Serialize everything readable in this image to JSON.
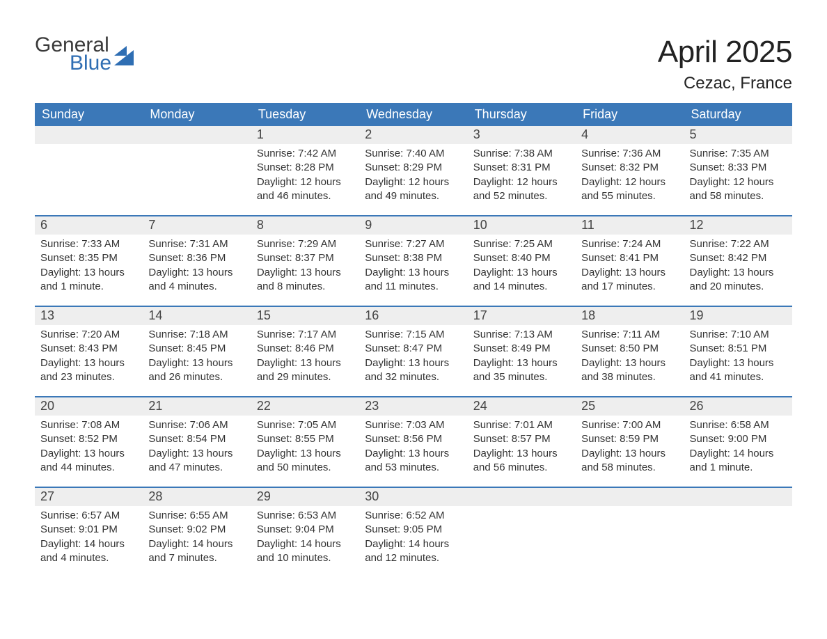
{
  "logo": {
    "general": "General",
    "blue": "Blue"
  },
  "title": "April 2025",
  "subtitle": "Cezac, France",
  "colors": {
    "header_bg": "#3b78b8",
    "header_text": "#ffffff",
    "daynum_bg": "#eeeeee",
    "body_text": "#333333",
    "row_border": "#3b78b8",
    "logo_blue": "#2f6eb3"
  },
  "fontsizes": {
    "title": 44,
    "subtitle": 24,
    "header": 18,
    "daynum": 18,
    "body": 15
  },
  "weekdays": [
    "Sunday",
    "Monday",
    "Tuesday",
    "Wednesday",
    "Thursday",
    "Friday",
    "Saturday"
  ],
  "weeks": [
    [
      {
        "day": "",
        "sunrise": "",
        "sunset": "",
        "daylight": ""
      },
      {
        "day": "",
        "sunrise": "",
        "sunset": "",
        "daylight": ""
      },
      {
        "day": "1",
        "sunrise": "Sunrise: 7:42 AM",
        "sunset": "Sunset: 8:28 PM",
        "daylight": "Daylight: 12 hours and 46 minutes."
      },
      {
        "day": "2",
        "sunrise": "Sunrise: 7:40 AM",
        "sunset": "Sunset: 8:29 PM",
        "daylight": "Daylight: 12 hours and 49 minutes."
      },
      {
        "day": "3",
        "sunrise": "Sunrise: 7:38 AM",
        "sunset": "Sunset: 8:31 PM",
        "daylight": "Daylight: 12 hours and 52 minutes."
      },
      {
        "day": "4",
        "sunrise": "Sunrise: 7:36 AM",
        "sunset": "Sunset: 8:32 PM",
        "daylight": "Daylight: 12 hours and 55 minutes."
      },
      {
        "day": "5",
        "sunrise": "Sunrise: 7:35 AM",
        "sunset": "Sunset: 8:33 PM",
        "daylight": "Daylight: 12 hours and 58 minutes."
      }
    ],
    [
      {
        "day": "6",
        "sunrise": "Sunrise: 7:33 AM",
        "sunset": "Sunset: 8:35 PM",
        "daylight": "Daylight: 13 hours and 1 minute."
      },
      {
        "day": "7",
        "sunrise": "Sunrise: 7:31 AM",
        "sunset": "Sunset: 8:36 PM",
        "daylight": "Daylight: 13 hours and 4 minutes."
      },
      {
        "day": "8",
        "sunrise": "Sunrise: 7:29 AM",
        "sunset": "Sunset: 8:37 PM",
        "daylight": "Daylight: 13 hours and 8 minutes."
      },
      {
        "day": "9",
        "sunrise": "Sunrise: 7:27 AM",
        "sunset": "Sunset: 8:38 PM",
        "daylight": "Daylight: 13 hours and 11 minutes."
      },
      {
        "day": "10",
        "sunrise": "Sunrise: 7:25 AM",
        "sunset": "Sunset: 8:40 PM",
        "daylight": "Daylight: 13 hours and 14 minutes."
      },
      {
        "day": "11",
        "sunrise": "Sunrise: 7:24 AM",
        "sunset": "Sunset: 8:41 PM",
        "daylight": "Daylight: 13 hours and 17 minutes."
      },
      {
        "day": "12",
        "sunrise": "Sunrise: 7:22 AM",
        "sunset": "Sunset: 8:42 PM",
        "daylight": "Daylight: 13 hours and 20 minutes."
      }
    ],
    [
      {
        "day": "13",
        "sunrise": "Sunrise: 7:20 AM",
        "sunset": "Sunset: 8:43 PM",
        "daylight": "Daylight: 13 hours and 23 minutes."
      },
      {
        "day": "14",
        "sunrise": "Sunrise: 7:18 AM",
        "sunset": "Sunset: 8:45 PM",
        "daylight": "Daylight: 13 hours and 26 minutes."
      },
      {
        "day": "15",
        "sunrise": "Sunrise: 7:17 AM",
        "sunset": "Sunset: 8:46 PM",
        "daylight": "Daylight: 13 hours and 29 minutes."
      },
      {
        "day": "16",
        "sunrise": "Sunrise: 7:15 AM",
        "sunset": "Sunset: 8:47 PM",
        "daylight": "Daylight: 13 hours and 32 minutes."
      },
      {
        "day": "17",
        "sunrise": "Sunrise: 7:13 AM",
        "sunset": "Sunset: 8:49 PM",
        "daylight": "Daylight: 13 hours and 35 minutes."
      },
      {
        "day": "18",
        "sunrise": "Sunrise: 7:11 AM",
        "sunset": "Sunset: 8:50 PM",
        "daylight": "Daylight: 13 hours and 38 minutes."
      },
      {
        "day": "19",
        "sunrise": "Sunrise: 7:10 AM",
        "sunset": "Sunset: 8:51 PM",
        "daylight": "Daylight: 13 hours and 41 minutes."
      }
    ],
    [
      {
        "day": "20",
        "sunrise": "Sunrise: 7:08 AM",
        "sunset": "Sunset: 8:52 PM",
        "daylight": "Daylight: 13 hours and 44 minutes."
      },
      {
        "day": "21",
        "sunrise": "Sunrise: 7:06 AM",
        "sunset": "Sunset: 8:54 PM",
        "daylight": "Daylight: 13 hours and 47 minutes."
      },
      {
        "day": "22",
        "sunrise": "Sunrise: 7:05 AM",
        "sunset": "Sunset: 8:55 PM",
        "daylight": "Daylight: 13 hours and 50 minutes."
      },
      {
        "day": "23",
        "sunrise": "Sunrise: 7:03 AM",
        "sunset": "Sunset: 8:56 PM",
        "daylight": "Daylight: 13 hours and 53 minutes."
      },
      {
        "day": "24",
        "sunrise": "Sunrise: 7:01 AM",
        "sunset": "Sunset: 8:57 PM",
        "daylight": "Daylight: 13 hours and 56 minutes."
      },
      {
        "day": "25",
        "sunrise": "Sunrise: 7:00 AM",
        "sunset": "Sunset: 8:59 PM",
        "daylight": "Daylight: 13 hours and 58 minutes."
      },
      {
        "day": "26",
        "sunrise": "Sunrise: 6:58 AM",
        "sunset": "Sunset: 9:00 PM",
        "daylight": "Daylight: 14 hours and 1 minute."
      }
    ],
    [
      {
        "day": "27",
        "sunrise": "Sunrise: 6:57 AM",
        "sunset": "Sunset: 9:01 PM",
        "daylight": "Daylight: 14 hours and 4 minutes."
      },
      {
        "day": "28",
        "sunrise": "Sunrise: 6:55 AM",
        "sunset": "Sunset: 9:02 PM",
        "daylight": "Daylight: 14 hours and 7 minutes."
      },
      {
        "day": "29",
        "sunrise": "Sunrise: 6:53 AM",
        "sunset": "Sunset: 9:04 PM",
        "daylight": "Daylight: 14 hours and 10 minutes."
      },
      {
        "day": "30",
        "sunrise": "Sunrise: 6:52 AM",
        "sunset": "Sunset: 9:05 PM",
        "daylight": "Daylight: 14 hours and 12 minutes."
      },
      {
        "day": "",
        "sunrise": "",
        "sunset": "",
        "daylight": ""
      },
      {
        "day": "",
        "sunrise": "",
        "sunset": "",
        "daylight": ""
      },
      {
        "day": "",
        "sunrise": "",
        "sunset": "",
        "daylight": ""
      }
    ]
  ]
}
